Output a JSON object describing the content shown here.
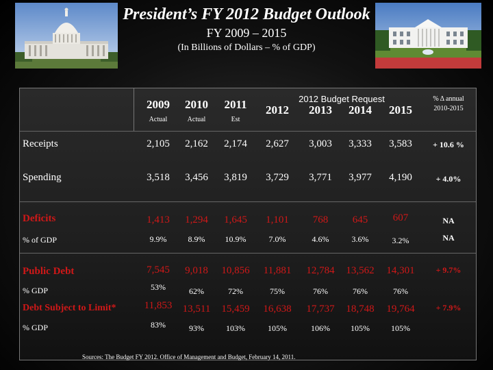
{
  "header": {
    "title": "President’s FY 2012 Budget Outlook",
    "subtitle": "FY 2009 – 2015",
    "subtitle2": "(In Billions of Dollars – % of GDP)"
  },
  "table": {
    "columns": {
      "y2009": {
        "year": "2009",
        "note": "Actual"
      },
      "y2010": {
        "year": "2010",
        "note": "Actual"
      },
      "y2011": {
        "year": "2011",
        "note": "Est"
      },
      "request_label": "2012 Budget Request",
      "y2012": "2012",
      "y2013": "2013",
      "y2014": "2014",
      "y2015": "2015",
      "annual_label": "% Δ annual",
      "annual_range": "2010-2015"
    },
    "rows": {
      "receipts": {
        "label": "Receipts",
        "values": [
          "2,105",
          "2,162",
          "2,174",
          "2,627",
          "3,003",
          "3,333",
          "3,583"
        ],
        "change": "+ 10.6 %"
      },
      "spending": {
        "label": "Spending",
        "values": [
          "3,518",
          "3,456",
          "3,819",
          "3,729",
          "3,771",
          "3,977",
          "4,190"
        ],
        "change": "+ 4.0%"
      },
      "deficits": {
        "label": "Deficits",
        "values": [
          "1,413",
          "1,294",
          "1,645",
          "1,101",
          "768",
          "645",
          "607"
        ],
        "change": "NA"
      },
      "deficits_gdp": {
        "label": "% of GDP",
        "values": [
          "9.9%",
          "8.9%",
          "10.9%",
          "7.0%",
          "4.6%",
          "3.6%",
          "3.2%"
        ],
        "change": "NA"
      },
      "public_debt": {
        "label": "Public Debt",
        "values": [
          "7,545",
          "9,018",
          "10,856",
          "11,881",
          "12,784",
          "13,562",
          "14,301"
        ],
        "change": "+ 9.7%"
      },
      "public_debt_gdp": {
        "label": "% GDP",
        "values": [
          "53%",
          "62%",
          "72%",
          "75%",
          "76%",
          "76%",
          "76%"
        ]
      },
      "debt_limit": {
        "label": "Debt Subject to Limit*",
        "values": [
          "11,853",
          "13,511",
          "15,459",
          "16,638",
          "17,737",
          "18,748",
          "19,764"
        ],
        "change": "+ 7.9%"
      },
      "debt_limit_gdp": {
        "label": "% GDP",
        "values": [
          "83%",
          "93%",
          "103%",
          "105%",
          "106%",
          "105%",
          "105%"
        ]
      }
    }
  },
  "source": "Sources: The Budget FY 2012. Office of Management and Budget, February 14, 2011.",
  "colors": {
    "accent_red": "#d01818",
    "background": "#000000"
  }
}
